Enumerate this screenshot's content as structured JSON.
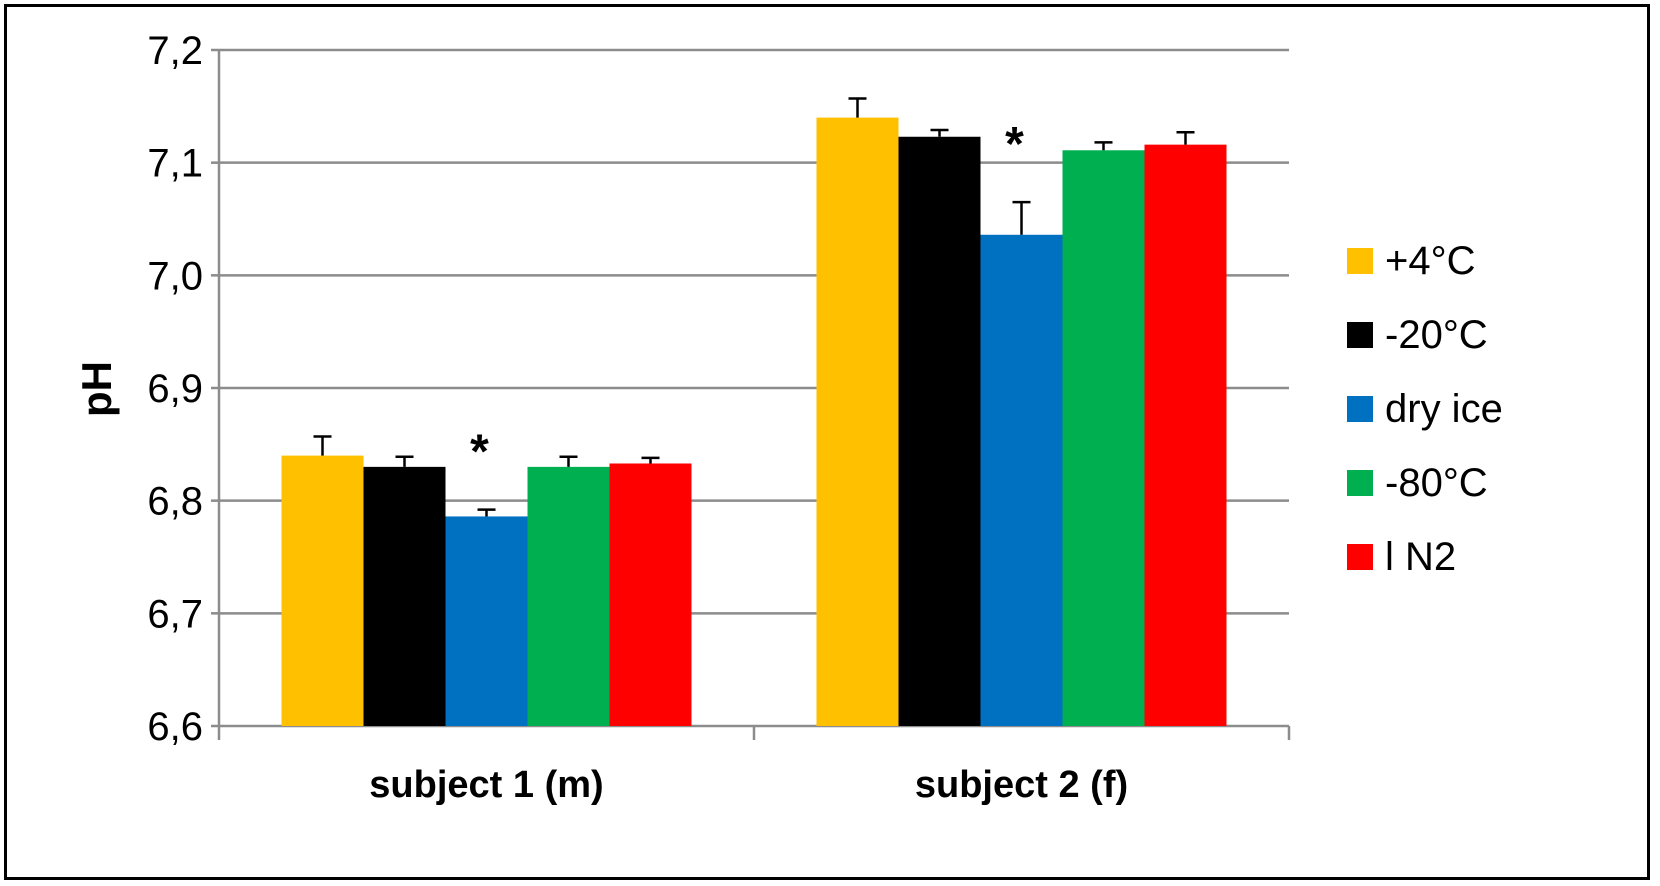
{
  "chart_data": {
    "type": "bar",
    "title": "",
    "xlabel": "",
    "ylabel": "pH",
    "ylim": [
      6.6,
      7.2
    ],
    "yticks": [
      6.6,
      6.7,
      6.8,
      6.9,
      7.0,
      7.1,
      7.2
    ],
    "ytick_labels": [
      "6,6",
      "6,7",
      "6,8",
      "6,9",
      "7,0",
      "7,1",
      "7,2"
    ],
    "grid": true,
    "legend_position": "right",
    "categories": [
      "subject 1 (m)",
      "subject 2 (f)"
    ],
    "series": [
      {
        "name": "+4°C",
        "color": "#FFC000",
        "values": [
          6.84,
          7.14
        ],
        "errors": [
          0.017,
          0.017
        ]
      },
      {
        "name": "-20°C",
        "color": "#000000",
        "values": [
          6.83,
          7.123
        ],
        "errors": [
          0.009,
          0.006
        ]
      },
      {
        "name": "dry ice",
        "color": "#0070C0",
        "values": [
          6.786,
          7.036
        ],
        "errors": [
          0.006,
          0.029
        ]
      },
      {
        "name": "-80°C",
        "color": "#00B050",
        "values": [
          6.83,
          7.111
        ],
        "errors": [
          0.009,
          0.007
        ]
      },
      {
        "name": "l N2",
        "color": "#FF0000",
        "values": [
          6.833,
          7.116
        ],
        "errors": [
          0.005,
          0.011
        ]
      }
    ],
    "annotations": [
      {
        "text": "*",
        "category": 0,
        "series": 2
      },
      {
        "text": "*",
        "category": 1,
        "series": 2
      }
    ]
  }
}
